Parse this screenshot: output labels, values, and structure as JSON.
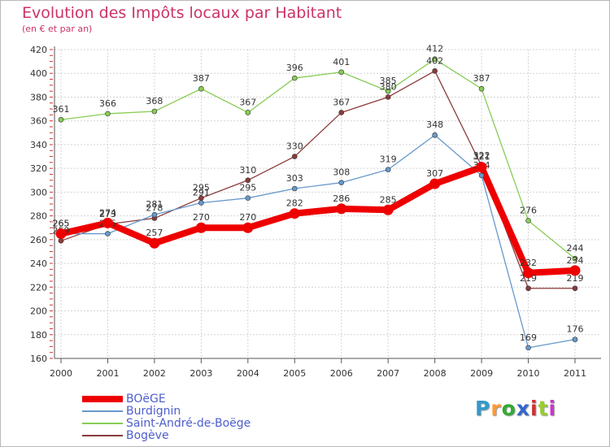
{
  "title": "Evolution des Impôts locaux par Habitant",
  "subtitle": "(en € et par an)",
  "logo": {
    "text": "Proxiti",
    "letters": [
      "P",
      "r",
      "o",
      "x",
      "i",
      "t",
      "i"
    ],
    "colors": [
      "#3399cc",
      "#ff9933",
      "#33aa33",
      "#3366cc",
      "#cc3333",
      "#99cc33",
      "#cc33cc"
    ]
  },
  "chart_data": {
    "type": "line",
    "title": "Evolution des Impôts locaux par Habitant",
    "subtitle": "(en € et par an)",
    "xlabel": "",
    "ylabel": "",
    "x": [
      "2000",
      "2001",
      "2002",
      "2003",
      "2004",
      "2005",
      "2006",
      "2007",
      "2008",
      "2009",
      "2010",
      "2011"
    ],
    "ylim": [
      160,
      420
    ],
    "yticks": [
      160,
      180,
      200,
      220,
      240,
      260,
      280,
      300,
      320,
      340,
      360,
      380,
      400,
      420
    ],
    "grid": true,
    "legend_position": "bottom-left",
    "series": [
      {
        "name": "Saint-André-de-Boëge",
        "color": "#88cc55",
        "values": [
          361,
          366,
          368,
          387,
          367,
          396,
          401,
          385,
          412,
          387,
          276,
          244
        ],
        "labels": [
          "361",
          "366",
          "368",
          "387",
          "367",
          "396",
          "401",
          "385",
          "412",
          "387",
          "276",
          "244"
        ]
      },
      {
        "name": "Bogève",
        "color": "#8b3a3a",
        "values": [
          259,
          273,
          278,
          295,
          310,
          330,
          367,
          380,
          402,
          322,
          219,
          219
        ],
        "labels": [
          "259",
          "273",
          "278",
          "295",
          "310",
          "330",
          "367",
          "380",
          "402",
          "322",
          "219",
          "219"
        ]
      },
      {
        "name": "Burdignin",
        "color": "#6699cc",
        "values": [
          265,
          265,
          281,
          291,
          295,
          303,
          308,
          319,
          348,
          314,
          169,
          176
        ],
        "labels": [
          "265",
          "265",
          "281",
          "291",
          "295",
          "303",
          "308",
          "319",
          "348",
          "314",
          "169",
          "176"
        ]
      },
      {
        "name": "BOëGE",
        "color": "#ee0000",
        "values": [
          265,
          274,
          257,
          270,
          270,
          282,
          286,
          285,
          307,
          321,
          232,
          234
        ],
        "labels": [
          "265",
          "274",
          "257",
          "270",
          "270",
          "282",
          "286",
          "285",
          "307",
          "321",
          "232",
          "234"
        ]
      }
    ],
    "legend": [
      "BOëGE",
      "Burdignin",
      "Saint-André-de-Boëge",
      "Bogève"
    ]
  }
}
